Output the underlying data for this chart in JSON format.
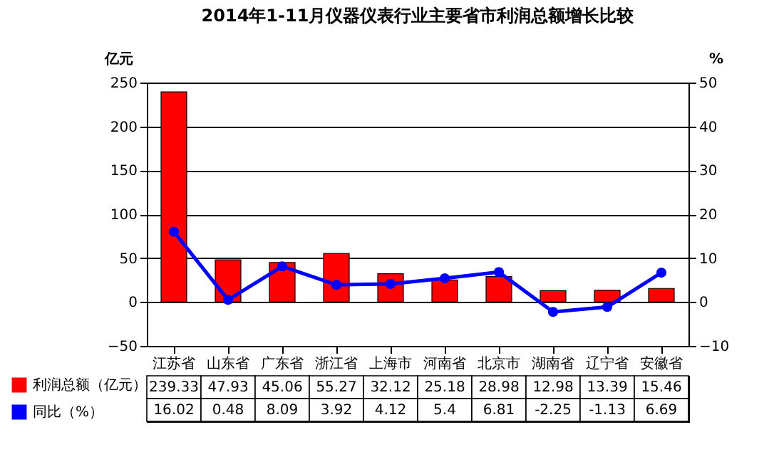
{
  "chart_data": {
    "type": "bar",
    "title": "2014年1-11月仪器仪表行业主要省市利润总额增长比较",
    "ylabel": "亿元",
    "y2label": "%",
    "categories": [
      "江苏省",
      "山东省",
      "广东省",
      "浙江省",
      "上海市",
      "河南省",
      "北京市",
      "湖南省",
      "辽宁省",
      "安徽省"
    ],
    "series": [
      {
        "name": "利润总额（亿元）",
        "color": "#ff0000",
        "values": [
          239.33,
          47.93,
          45.06,
          55.27,
          32.12,
          25.18,
          28.98,
          12.98,
          13.39,
          15.46
        ]
      },
      {
        "name": "同比（%）",
        "type": "line",
        "axis": "y2",
        "color": "#0000ff",
        "values": [
          16.02,
          0.48,
          8.09,
          3.92,
          4.12,
          5.4,
          6.81,
          -2.25,
          -1.13,
          6.69
        ]
      }
    ],
    "ylim": [
      -50,
      250
    ],
    "yticks": [
      -50,
      0,
      50,
      100,
      150,
      200,
      250
    ],
    "y2lim": [
      -10,
      50
    ],
    "y2ticks": [
      -10,
      0,
      10,
      20,
      30,
      40,
      50
    ],
    "grid": "y",
    "legend": "bottom left",
    "marker": "circle",
    "data_labels": true
  }
}
